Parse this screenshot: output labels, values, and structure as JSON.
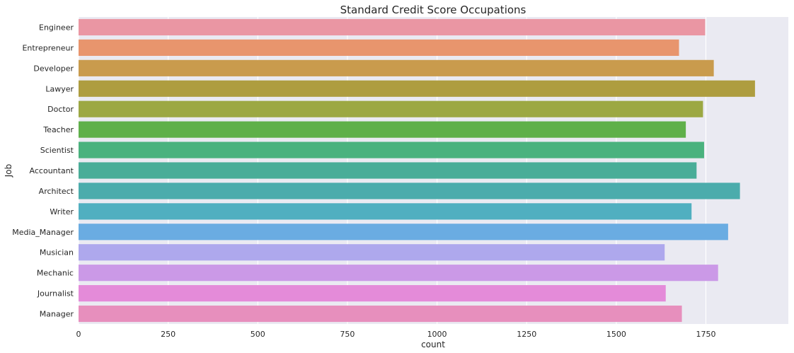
{
  "chart_data": {
    "type": "bar",
    "orientation": "horizontal",
    "title": "Standard Credit Score Occupations",
    "xlabel": "count",
    "ylabel": "Job",
    "xlim": [
      0,
      1980
    ],
    "xticks": [
      0,
      250,
      500,
      750,
      1000,
      1250,
      1500,
      1750
    ],
    "grid": true,
    "background": "#eaeaf2",
    "categories": [
      "Engineer",
      "Entrepreneur",
      "Developer",
      "Lawyer",
      "Doctor",
      "Teacher",
      "Scientist",
      "Accountant",
      "Architect",
      "Writer",
      "Media_Manager",
      "Musician",
      "Mechanic",
      "Journalist",
      "Manager"
    ],
    "values": [
      1748,
      1675,
      1772,
      1887,
      1742,
      1694,
      1745,
      1724,
      1845,
      1710,
      1812,
      1635,
      1784,
      1638,
      1683
    ],
    "colors": [
      "#ea96a3",
      "#e8956d",
      "#c99b4d",
      "#ae9d3f",
      "#9ca843",
      "#5fb04a",
      "#4ab27e",
      "#49ad98",
      "#4bacac",
      "#50afc0",
      "#6aace2",
      "#aea8ed",
      "#cb99e7",
      "#e48bd9",
      "#e78fbd"
    ]
  }
}
